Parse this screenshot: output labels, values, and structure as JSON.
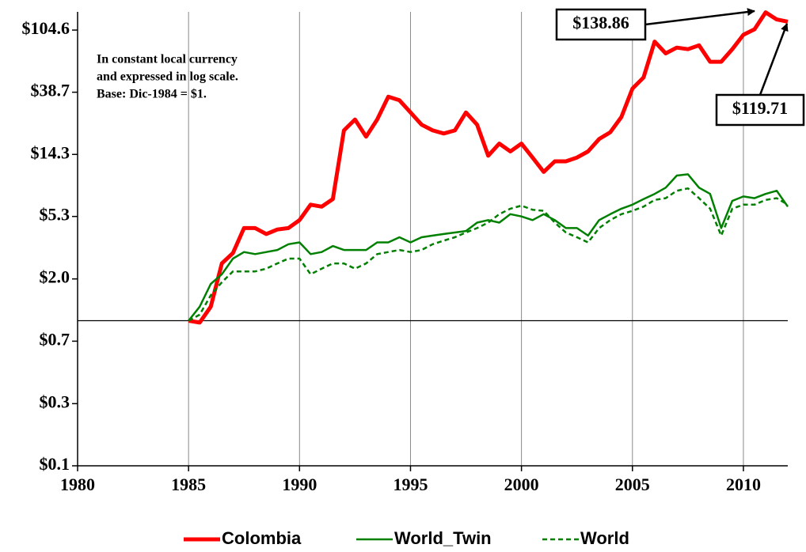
{
  "chart_data": {
    "type": "line",
    "yscale": "log",
    "xlim": [
      1980,
      2012
    ],
    "xticks": [
      1980,
      1985,
      1990,
      1995,
      2000,
      2005,
      2010
    ],
    "ylim": [
      0.098,
      140
    ],
    "yticks": [
      {
        "value": 0.098,
        "label": "$0.1"
      },
      {
        "value": 0.265,
        "label": "$0.3"
      },
      {
        "value": 0.72,
        "label": "$0.7"
      },
      {
        "value": 1.95,
        "label": "$2.0"
      },
      {
        "value": 5.3,
        "label": "$5.3"
      },
      {
        "value": 14.3,
        "label": "$14.3"
      },
      {
        "value": 38.7,
        "label": "$38.7"
      },
      {
        "value": 104.6,
        "label": "$104.6"
      }
    ],
    "xgrid": true,
    "reference_line": 1,
    "legend": "bottom",
    "note": [
      "In constant local currency",
      "and expressed in log scale.",
      "Base: Dic-1984 = $1."
    ],
    "annotations": [
      "$138.86",
      "$119.71"
    ],
    "x": [
      1985,
      1985.5,
      1986,
      1986.5,
      1987,
      1987.5,
      1988,
      1988.5,
      1989,
      1989.5,
      1990,
      1990.5,
      1991,
      1991.5,
      1992,
      1992.5,
      1993,
      1993.5,
      1994,
      1994.5,
      1995,
      1995.5,
      1996,
      1996.5,
      1997,
      1997.5,
      1998,
      1998.5,
      1999,
      1999.5,
      2000,
      2000.5,
      2001,
      2001.5,
      2002,
      2002.5,
      2003,
      2003.5,
      2004,
      2004.5,
      2005,
      2005.5,
      2006,
      2006.5,
      2007,
      2007.5,
      2008,
      2008.5,
      2009,
      2009.5,
      2010,
      2010.5,
      2011,
      2011.5,
      2012
    ],
    "series": [
      {
        "name": "Colombia",
        "color": "#ff0000",
        "width": 5,
        "dash": false,
        "values": [
          1.0,
          0.97,
          1.25,
          2.5,
          2.95,
          4.4,
          4.4,
          4.0,
          4.3,
          4.4,
          5.0,
          6.4,
          6.2,
          7.0,
          21,
          25,
          19,
          25,
          36,
          34,
          28,
          23,
          21,
          20,
          21,
          28,
          23,
          14,
          17,
          15,
          17,
          13.6,
          10.8,
          12.8,
          12.8,
          13.6,
          15,
          18.3,
          20.4,
          26,
          41,
          49,
          87,
          72,
          79,
          77,
          82,
          63,
          63,
          77,
          97,
          106,
          138.86,
          124,
          119.71
        ]
      },
      {
        "name": "World_Twin",
        "color": "#008000",
        "width": 2.5,
        "dash": false,
        "values": [
          1.0,
          1.25,
          1.8,
          2.1,
          2.7,
          3.0,
          2.9,
          3.0,
          3.1,
          3.4,
          3.5,
          2.9,
          3.0,
          3.3,
          3.1,
          3.1,
          3.1,
          3.5,
          3.5,
          3.8,
          3.5,
          3.8,
          3.9,
          4.0,
          4.1,
          4.2,
          4.8,
          5.0,
          4.8,
          5.5,
          5.3,
          5.0,
          5.5,
          5.0,
          4.4,
          4.4,
          3.9,
          5.0,
          5.5,
          6.0,
          6.4,
          7.0,
          7.6,
          8.4,
          10.2,
          10.4,
          8.4,
          7.6,
          4.4,
          6.8,
          7.3,
          7.1,
          7.6,
          8.0,
          6.2
        ]
      },
      {
        "name": "World",
        "color": "#008000",
        "width": 2.5,
        "dash": true,
        "values": [
          1.0,
          1.1,
          1.5,
          1.85,
          2.2,
          2.2,
          2.2,
          2.3,
          2.5,
          2.7,
          2.7,
          2.1,
          2.3,
          2.5,
          2.5,
          2.3,
          2.5,
          2.9,
          3.0,
          3.1,
          3.0,
          3.1,
          3.4,
          3.6,
          3.8,
          4.1,
          4.4,
          4.8,
          5.5,
          6.0,
          6.3,
          5.9,
          5.8,
          4.8,
          4.1,
          3.8,
          3.5,
          4.4,
          5.0,
          5.5,
          5.8,
          6.2,
          6.9,
          7.1,
          8.0,
          8.3,
          7.1,
          6.0,
          3.9,
          6.0,
          6.4,
          6.4,
          6.9,
          7.1,
          6.4
        ]
      }
    ]
  }
}
